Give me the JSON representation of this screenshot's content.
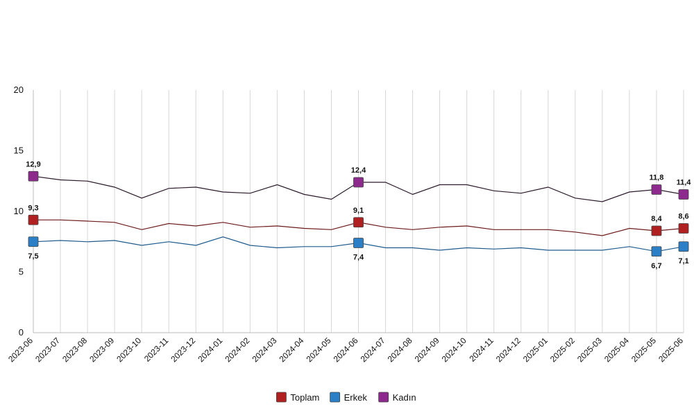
{
  "chart_data": {
    "type": "line",
    "x": [
      "2023-06",
      "2023-07",
      "2023-08",
      "2023-09",
      "2023-10",
      "2023-11",
      "2023-12",
      "2024-01",
      "2024-02",
      "2024-03",
      "2024-04",
      "2024-05",
      "2024-06",
      "2024-07",
      "2024-08",
      "2024-09",
      "2024-10",
      "2024-11",
      "2024-12",
      "2025-01",
      "2025-02",
      "2025-03",
      "2025-04",
      "2025-05",
      "2025-06"
    ],
    "x_tick_labels": [
      "2023-06",
      "2023-07",
      "2023-08",
      "2023-09",
      "2023-10",
      "2023-11",
      "2023-12",
      "2024-01",
      "2024-02",
      "2024-03",
      "2024-04",
      "2024-05",
      "2024-06",
      "2024-07",
      "2024-08",
      "2024-09",
      "2024-10",
      "2024-11",
      "2024-12",
      "2025-01",
      "2025-02",
      "2025-03",
      "2025-04",
      "2025-05",
      "2025-06"
    ],
    "y_ticks": [
      "0",
      "5",
      "10",
      "15",
      "20"
    ],
    "ylim": [
      0,
      20
    ],
    "grid": "vertical",
    "legend_position": "bottom",
    "series": [
      {
        "name": "Toplam",
        "color": "#b02020",
        "line_color": "#6b1a1a",
        "values": [
          9.3,
          9.3,
          9.2,
          9.1,
          8.5,
          9.0,
          8.8,
          9.1,
          8.7,
          8.8,
          8.6,
          8.5,
          9.1,
          8.7,
          8.5,
          8.7,
          8.8,
          8.5,
          8.5,
          8.5,
          8.3,
          8.0,
          8.6,
          8.4,
          8.6
        ],
        "data_labels": [
          {
            "index": 0,
            "text": "9,3"
          },
          {
            "index": 12,
            "text": "9,1"
          },
          {
            "index": 23,
            "text": "8,4"
          },
          {
            "index": 24,
            "text": "8,6"
          }
        ]
      },
      {
        "name": "Erkek",
        "color": "#2a7fc6",
        "line_color": "#1f5a8c",
        "values": [
          7.5,
          7.6,
          7.5,
          7.6,
          7.2,
          7.5,
          7.2,
          7.9,
          7.2,
          7.0,
          7.1,
          7.1,
          7.4,
          7.0,
          7.0,
          6.8,
          7.0,
          6.9,
          7.0,
          6.8,
          6.8,
          6.8,
          7.1,
          6.7,
          7.1
        ],
        "data_labels": [
          {
            "index": 0,
            "text": "7,5"
          },
          {
            "index": 12,
            "text": "7,4"
          },
          {
            "index": 23,
            "text": "6,7"
          },
          {
            "index": 24,
            "text": "7,1"
          }
        ]
      },
      {
        "name": "Kadın",
        "color": "#8e2a8e",
        "line_color": "#2a1a2a",
        "values": [
          12.9,
          12.6,
          12.5,
          12.0,
          11.1,
          11.9,
          12.0,
          11.6,
          11.5,
          12.2,
          11.4,
          11.0,
          12.4,
          12.4,
          11.4,
          12.2,
          12.2,
          11.7,
          11.5,
          12.0,
          11.1,
          10.8,
          11.6,
          11.8,
          11.4
        ],
        "data_labels": [
          {
            "index": 0,
            "text": "12,9"
          },
          {
            "index": 12,
            "text": "12,4"
          },
          {
            "index": 23,
            "text": "11,8"
          },
          {
            "index": 24,
            "text": "11,4"
          }
        ]
      }
    ]
  }
}
